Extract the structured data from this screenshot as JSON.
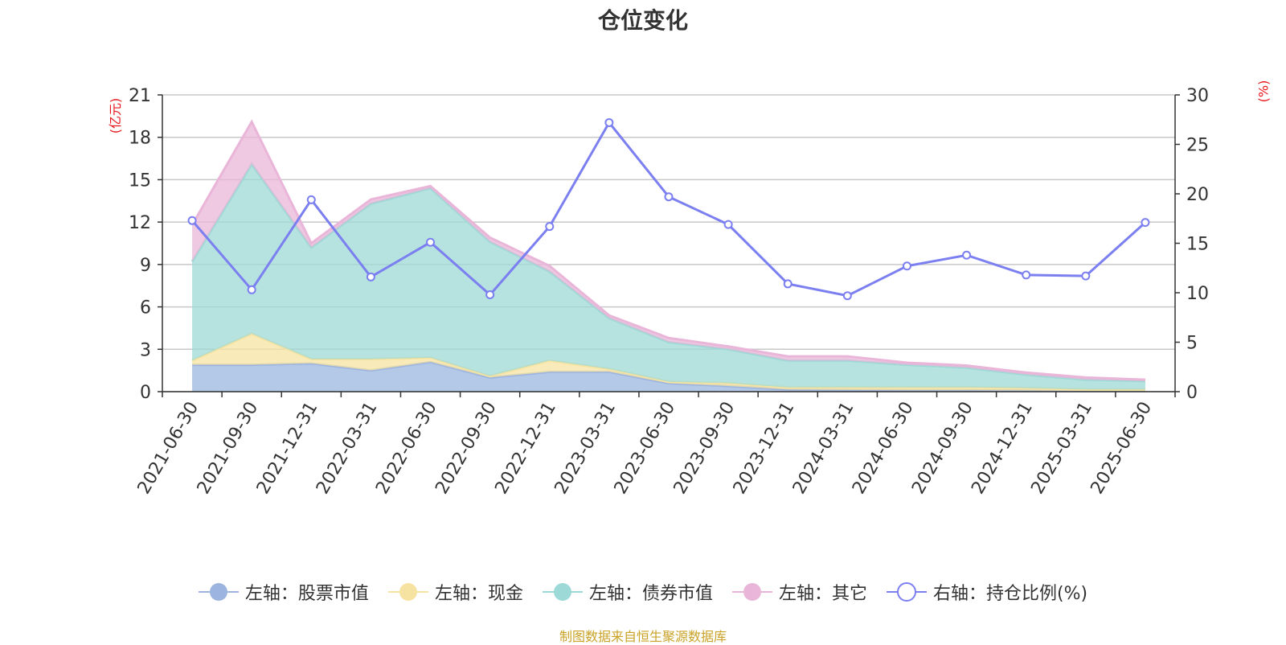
{
  "chart_data": {
    "type": "area",
    "title": "仓位变化",
    "source_note": "制图数据来自恒生聚源数据库",
    "left_axis": {
      "unit": "(亿元)",
      "ylim": [
        0,
        21
      ],
      "ticks": [
        "0",
        "3",
        "6",
        "9",
        "12",
        "15",
        "18",
        "21"
      ]
    },
    "right_axis": {
      "unit": "(%)",
      "ylim": [
        0,
        30
      ],
      "ticks": [
        "0",
        "5",
        "10",
        "15",
        "20",
        "25",
        "30"
      ]
    },
    "grid": true,
    "legend_position": "bottom",
    "categories": [
      "2021-06-30",
      "2021-09-30",
      "2021-12-31",
      "2022-03-31",
      "2022-06-30",
      "2022-09-30",
      "2022-12-31",
      "2023-03-31",
      "2023-06-30",
      "2023-09-30",
      "2023-12-31",
      "2024-03-31",
      "2024-06-30",
      "2024-09-30",
      "2024-12-31",
      "2025-03-31",
      "2025-06-30"
    ],
    "stacked_series": [
      {
        "name": "左轴：股票市值",
        "axis": "left",
        "color": "#9bb5e0",
        "values": [
          1.9,
          1.9,
          2.0,
          1.5,
          2.1,
          1.0,
          1.4,
          1.4,
          0.6,
          0.4,
          0.15,
          0.12,
          0.1,
          0.1,
          0.08,
          0.05,
          0.05
        ]
      },
      {
        "name": "左轴：现金",
        "axis": "left",
        "color": "#f7e3a1",
        "values": [
          0.3,
          2.2,
          0.3,
          0.8,
          0.3,
          0.1,
          0.8,
          0.2,
          0.1,
          0.2,
          0.15,
          0.18,
          0.2,
          0.2,
          0.17,
          0.1,
          0.1
        ]
      },
      {
        "name": "左轴：债券市值",
        "axis": "left",
        "color": "#9dd9d6",
        "values": [
          7.0,
          12.0,
          7.9,
          11.0,
          12.0,
          9.5,
          6.3,
          3.6,
          2.8,
          2.4,
          1.9,
          1.9,
          1.6,
          1.4,
          0.95,
          0.7,
          0.6
        ]
      },
      {
        "name": "左轴：其它",
        "axis": "left",
        "color": "#e9b5d8",
        "values": [
          2.6,
          3.0,
          0.3,
          0.3,
          0.15,
          0.3,
          0.4,
          0.2,
          0.3,
          0.2,
          0.3,
          0.3,
          0.15,
          0.15,
          0.15,
          0.15,
          0.1
        ]
      }
    ],
    "line_series": {
      "name": "右轴：持仓比例(%)",
      "axis": "right",
      "color": "#7b7ff0",
      "values": [
        17.3,
        10.3,
        19.4,
        11.6,
        15.1,
        9.8,
        16.7,
        27.2,
        19.7,
        16.9,
        10.9,
        9.7,
        12.7,
        13.8,
        11.8,
        11.7,
        17.1
      ]
    }
  }
}
